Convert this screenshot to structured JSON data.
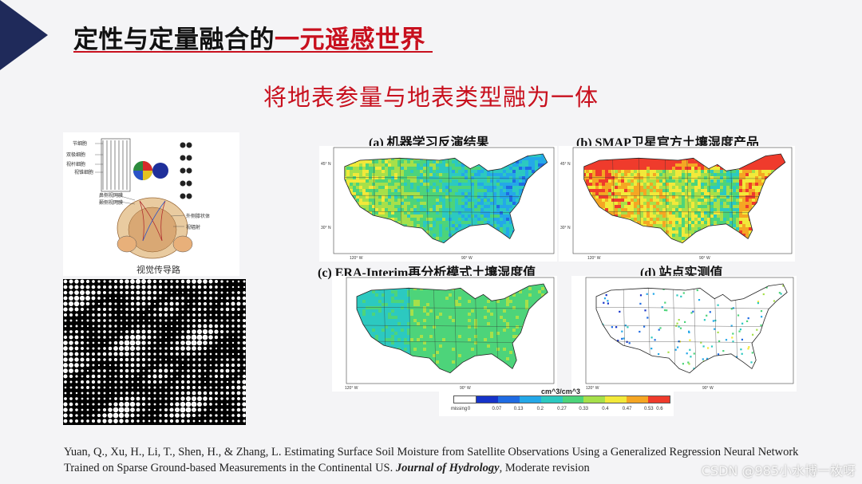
{
  "slide": {
    "title_main": "定性与定量融合的",
    "title_accent": "一元遥感世界",
    "subtitle": "将地表参量与地表类型融为一体",
    "colors": {
      "accent": "#c8101e",
      "navy": "#1f2a5a"
    }
  },
  "visual_pathway": {
    "title": "视觉传导路",
    "labels_left": [
      "节细胞",
      "双极细胞",
      "视杆细胞",
      "视锥细胞",
      "鼻侧视网膜",
      "颞侧视网膜"
    ],
    "labels_right": [
      "外侧膝状体",
      "视辐射"
    ]
  },
  "maps": {
    "panels": [
      {
        "caption": "(a) 机器学习反演结果"
      },
      {
        "caption": "(b) SMAP卫星官方土壤湿度产品"
      },
      {
        "caption": "(c) ERA-Interim再分析模式土壤湿度值"
      },
      {
        "caption": "(d) 站点实测值"
      }
    ],
    "axis": {
      "lat_45": "45° N",
      "lat_30": "30° N",
      "lon_120": "120° W",
      "lon_90": "90° W"
    },
    "colorbar": {
      "unit": "cm^3/cm^3",
      "missing_label": "missing",
      "ticks": [
        "0",
        "0.07",
        "0.13",
        "0.2",
        "0.27",
        "0.33",
        "0.4",
        "0.47",
        "0.53",
        "0.6"
      ],
      "colors": [
        "#ffffff",
        "#1633c9",
        "#1f6be3",
        "#24a8e8",
        "#2cc9c0",
        "#4dd47a",
        "#a6e04a",
        "#f2e93a",
        "#f5a623",
        "#ef3b2c"
      ]
    }
  },
  "reference": {
    "text": "Yuan, Q., Xu, H., Li, T., Shen, H., & Zhang, L. Estimating Surface Soil Moisture from Satellite Observations Using a Generalized Regression Neural Network Trained on Sparse Ground-based Measurements in the Continental US.",
    "journal": "Journal of Hydrology",
    "status": ", Moderate revision"
  },
  "watermark": "CSDN @985小水博一枚呀"
}
